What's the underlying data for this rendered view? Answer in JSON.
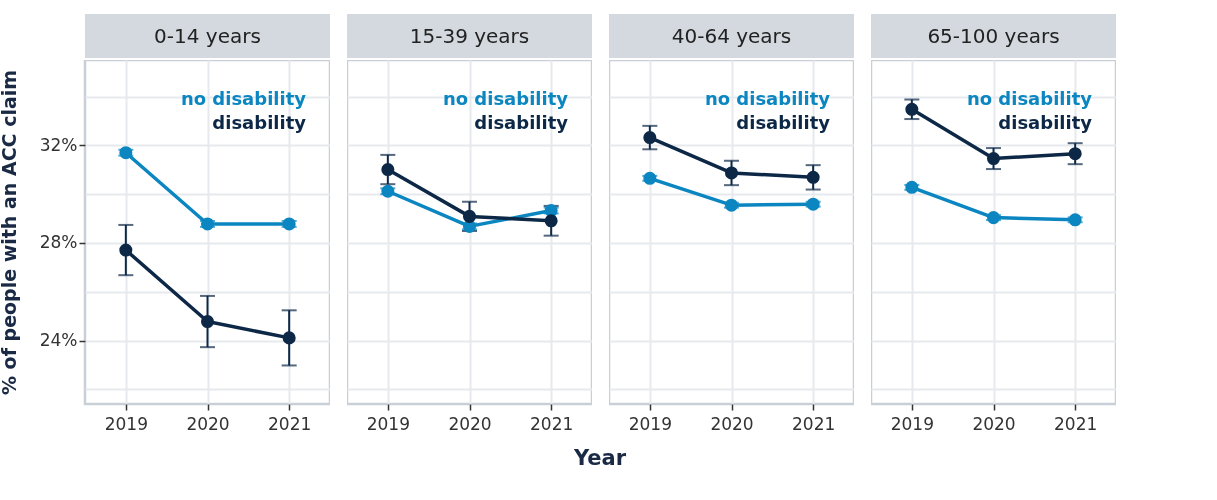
{
  "chart_data": [
    {
      "type": "line",
      "title": "0-14 years",
      "annotations": [
        "Year"
      ],
      "ylabel": "% of people with an ACC claim",
      "categories": [
        "2019",
        "2020",
        "2021"
      ],
      "ylim": [
        21.4,
        35.5
      ],
      "yticks": [
        {
          "value": 22,
          "label": null
        },
        {
          "value": 24,
          "label": "24%"
        },
        {
          "value": 26,
          "label": null
        },
        {
          "value": 28,
          "label": "28%"
        },
        {
          "value": 30,
          "label": null
        },
        {
          "value": 32,
          "label": "32%"
        },
        {
          "value": 34,
          "label": null
        }
      ],
      "grid": true,
      "legend": "top right",
      "marker": "circle",
      "line_style": "solid",
      "series": [
        {
          "name": "no disability",
          "color": "#0b86c1",
          "values": [
            31.7,
            28.78,
            28.78
          ],
          "errors": [
            0.12,
            0.12,
            0.12
          ]
        },
        {
          "name": "disability",
          "color": "#0d2847",
          "values": [
            27.71,
            24.78,
            24.11
          ],
          "errors": [
            1.03,
            1.05,
            1.13
          ]
        }
      ]
    },
    {
      "type": "line",
      "title": "15-39 years",
      "categories": [
        "2019",
        "2020",
        "2021"
      ],
      "ylim": [
        21.4,
        35.5
      ],
      "yticks": [
        22,
        24,
        26,
        28,
        30,
        32,
        34
      ],
      "tick_labels": "x",
      "grid": true,
      "legend": "top right",
      "marker": "circle",
      "line_style": "solid",
      "series": [
        {
          "name": "no disability",
          "color": "#0b86c1",
          "values": [
            30.12,
            28.68,
            29.33
          ],
          "errors": [
            0.12,
            0.12,
            0.12
          ]
        },
        {
          "name": "disability",
          "color": "#0d2847",
          "values": [
            31.01,
            29.09,
            28.91
          ],
          "errors": [
            0.6,
            0.6,
            0.61
          ]
        }
      ]
    },
    {
      "type": "line",
      "title": "40-64 years",
      "categories": [
        "2019",
        "2020",
        "2021"
      ],
      "ylim": [
        21.4,
        35.5
      ],
      "yticks": [
        22,
        24,
        26,
        28,
        30,
        32,
        34
      ],
      "tick_labels": "x",
      "grid": true,
      "legend": "top right",
      "marker": "circle",
      "line_style": "solid",
      "series": [
        {
          "name": "no disability",
          "color": "#0b86c1",
          "values": [
            30.65,
            29.55,
            29.59
          ],
          "errors": [
            0.1,
            0.1,
            0.1
          ]
        },
        {
          "name": "disability",
          "color": "#0d2847",
          "values": [
            32.32,
            30.87,
            30.69
          ],
          "errors": [
            0.48,
            0.5,
            0.5
          ]
        }
      ]
    },
    {
      "type": "line",
      "title": "65-100 years",
      "categories": [
        "2019",
        "2020",
        "2021"
      ],
      "ylim": [
        21.4,
        35.5
      ],
      "yticks": [
        22,
        24,
        26,
        28,
        30,
        32,
        34
      ],
      "tick_labels": "x",
      "grid": true,
      "legend": "top right",
      "marker": "circle",
      "line_style": "solid",
      "series": [
        {
          "name": "no disability",
          "color": "#0b86c1",
          "values": [
            30.28,
            29.04,
            28.95
          ],
          "errors": [
            0.1,
            0.1,
            0.1
          ]
        },
        {
          "name": "disability",
          "color": "#0d2847",
          "values": [
            33.48,
            31.46,
            31.66
          ],
          "errors": [
            0.4,
            0.43,
            0.43
          ]
        }
      ]
    }
  ]
}
